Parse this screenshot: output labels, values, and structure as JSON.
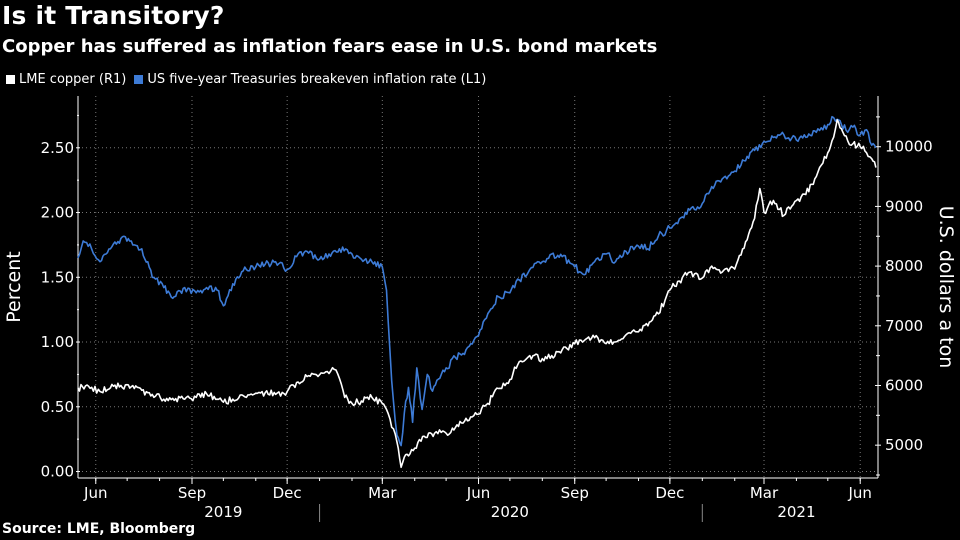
{
  "title": "Is it Transitory?",
  "subtitle": "Copper has suffered as inflation fears ease in U.S. bond markets",
  "source": "Source: LME, Bloomberg",
  "legend": [
    {
      "label": "LME copper (R1)",
      "color": "#ffffff"
    },
    {
      "label": "US five-year Treasuries breakeven inflation rate (L1)",
      "color": "#3d7bd6"
    }
  ],
  "chart_data": {
    "type": "line",
    "x_range": [
      "2019-05-15",
      "2021-06-18"
    ],
    "left_axis": {
      "title": "Percent",
      "ylim": [
        -0.05,
        2.9
      ],
      "ticks": [
        0.0,
        0.5,
        1.0,
        1.5,
        2.0,
        2.5
      ],
      "tick_labels": [
        "0.00",
        "0.50",
        "1.00",
        "1.50",
        "2.00",
        "2.50"
      ]
    },
    "right_axis": {
      "title": "U.S. dollars a ton",
      "ylim": [
        4450,
        10850
      ],
      "ticks": [
        5000,
        6000,
        7000,
        8000,
        9000,
        10000
      ],
      "tick_labels": [
        "5000",
        "6000",
        "7000",
        "8000",
        "9000",
        "10000"
      ]
    },
    "x_tick_labels": [
      {
        "label": "Jun",
        "date": "2019-06-01"
      },
      {
        "label": "Sep",
        "date": "2019-09-01"
      },
      {
        "label": "Dec",
        "date": "2019-12-01"
      },
      {
        "label": "Mar",
        "date": "2020-03-01"
      },
      {
        "label": "Jun",
        "date": "2020-06-01"
      },
      {
        "label": "Sep",
        "date": "2020-09-01"
      },
      {
        "label": "Dec",
        "date": "2020-12-01"
      },
      {
        "label": "Mar",
        "date": "2021-03-01"
      },
      {
        "label": "Jun",
        "date": "2021-06-01"
      }
    ],
    "year_labels": [
      {
        "label": "2019",
        "date": "2019-10-01"
      },
      {
        "label": "2020",
        "date": "2020-07-01"
      },
      {
        "label": "2021",
        "date": "2021-04-01"
      }
    ],
    "year_separators": [
      "2020-01-01",
      "2021-01-01"
    ],
    "series": [
      {
        "name": "US five-year Treasuries breakeven inflation rate (L1)",
        "axis": "left",
        "color": "#3d7bd6",
        "x": [
          "2019-05-15",
          "2019-05-20",
          "2019-05-28",
          "2019-06-05",
          "2019-06-15",
          "2019-06-25",
          "2019-07-05",
          "2019-07-15",
          "2019-07-25",
          "2019-08-05",
          "2019-08-15",
          "2019-08-25",
          "2019-09-05",
          "2019-09-15",
          "2019-09-25",
          "2019-10-01",
          "2019-10-10",
          "2019-10-20",
          "2019-11-01",
          "2019-11-10",
          "2019-11-20",
          "2019-12-01",
          "2019-12-10",
          "2019-12-20",
          "2020-01-01",
          "2020-01-10",
          "2020-01-20",
          "2020-02-01",
          "2020-02-10",
          "2020-02-20",
          "2020-03-01",
          "2020-03-05",
          "2020-03-10",
          "2020-03-15",
          "2020-03-19",
          "2020-03-22",
          "2020-03-26",
          "2020-03-30",
          "2020-04-03",
          "2020-04-08",
          "2020-04-13",
          "2020-04-18",
          "2020-04-25",
          "2020-05-01",
          "2020-05-10",
          "2020-05-20",
          "2020-06-01",
          "2020-06-10",
          "2020-06-20",
          "2020-07-01",
          "2020-07-10",
          "2020-07-20",
          "2020-08-01",
          "2020-08-10",
          "2020-08-20",
          "2020-09-01",
          "2020-09-10",
          "2020-09-20",
          "2020-10-01",
          "2020-10-10",
          "2020-10-20",
          "2020-11-01",
          "2020-11-10",
          "2020-11-20",
          "2020-12-01",
          "2020-12-10",
          "2020-12-20",
          "2021-01-01",
          "2021-01-10",
          "2021-01-20",
          "2021-02-01",
          "2021-02-10",
          "2021-02-20",
          "2021-03-01",
          "2021-03-10",
          "2021-03-20",
          "2021-04-01",
          "2021-04-10",
          "2021-04-20",
          "2021-05-01",
          "2021-05-05",
          "2021-05-10",
          "2021-05-14",
          "2021-05-20",
          "2021-05-25",
          "2021-06-01",
          "2021-06-07",
          "2021-06-12",
          "2021-06-16"
        ],
        "y": [
          1.65,
          1.78,
          1.72,
          1.62,
          1.72,
          1.8,
          1.78,
          1.72,
          1.5,
          1.42,
          1.35,
          1.42,
          1.38,
          1.42,
          1.4,
          1.28,
          1.45,
          1.55,
          1.58,
          1.6,
          1.62,
          1.56,
          1.66,
          1.7,
          1.64,
          1.68,
          1.72,
          1.68,
          1.64,
          1.62,
          1.58,
          1.4,
          0.7,
          0.28,
          0.2,
          0.45,
          0.65,
          0.38,
          0.8,
          0.48,
          0.75,
          0.62,
          0.72,
          0.8,
          0.88,
          0.94,
          1.05,
          1.22,
          1.35,
          1.38,
          1.48,
          1.56,
          1.62,
          1.68,
          1.66,
          1.58,
          1.52,
          1.62,
          1.68,
          1.62,
          1.7,
          1.74,
          1.72,
          1.82,
          1.88,
          1.95,
          2.02,
          2.07,
          2.2,
          2.26,
          2.32,
          2.4,
          2.48,
          2.55,
          2.58,
          2.6,
          2.56,
          2.58,
          2.62,
          2.68,
          2.74,
          2.72,
          2.68,
          2.62,
          2.66,
          2.6,
          2.64,
          2.52,
          2.5
        ]
      },
      {
        "name": "LME copper (R1)",
        "axis": "right",
        "color": "#ffffff",
        "x": [
          "2019-05-15",
          "2019-05-25",
          "2019-06-05",
          "2019-06-15",
          "2019-06-25",
          "2019-07-05",
          "2019-07-15",
          "2019-07-25",
          "2019-08-05",
          "2019-08-15",
          "2019-08-25",
          "2019-09-05",
          "2019-09-15",
          "2019-09-25",
          "2019-10-01",
          "2019-10-10",
          "2019-10-20",
          "2019-11-01",
          "2019-11-10",
          "2019-11-20",
          "2019-12-01",
          "2019-12-10",
          "2019-12-20",
          "2020-01-01",
          "2020-01-10",
          "2020-01-15",
          "2020-01-20",
          "2020-01-25",
          "2020-02-01",
          "2020-02-10",
          "2020-02-20",
          "2020-03-01",
          "2020-03-05",
          "2020-03-10",
          "2020-03-15",
          "2020-03-19",
          "2020-03-22",
          "2020-03-26",
          "2020-04-01",
          "2020-04-10",
          "2020-04-20",
          "2020-05-01",
          "2020-05-10",
          "2020-05-20",
          "2020-06-01",
          "2020-06-10",
          "2020-06-20",
          "2020-07-01",
          "2020-07-10",
          "2020-07-20",
          "2020-08-01",
          "2020-08-10",
          "2020-08-20",
          "2020-09-01",
          "2020-09-10",
          "2020-09-20",
          "2020-10-01",
          "2020-10-10",
          "2020-10-20",
          "2020-11-01",
          "2020-11-10",
          "2020-11-20",
          "2020-12-01",
          "2020-12-10",
          "2020-12-20",
          "2021-01-01",
          "2021-01-10",
          "2021-01-20",
          "2021-02-01",
          "2021-02-10",
          "2021-02-20",
          "2021-02-25",
          "2021-03-01",
          "2021-03-10",
          "2021-03-20",
          "2021-04-01",
          "2021-04-10",
          "2021-04-20",
          "2021-05-01",
          "2021-05-05",
          "2021-05-10",
          "2021-05-14",
          "2021-05-20",
          "2021-05-25",
          "2021-06-01",
          "2021-06-07",
          "2021-06-12",
          "2021-06-16"
        ],
        "y": [
          5960,
          5990,
          5900,
          5960,
          6000,
          5980,
          5920,
          5850,
          5770,
          5750,
          5770,
          5800,
          5860,
          5770,
          5720,
          5770,
          5830,
          5870,
          5880,
          5850,
          5900,
          6050,
          6150,
          6180,
          6200,
          6270,
          6120,
          5800,
          5700,
          5740,
          5800,
          5700,
          5600,
          5300,
          5050,
          4630,
          4800,
          4820,
          4950,
          5150,
          5200,
          5200,
          5300,
          5450,
          5520,
          5700,
          5950,
          6100,
          6400,
          6500,
          6450,
          6500,
          6600,
          6700,
          6750,
          6800,
          6700,
          6730,
          6850,
          6900,
          7000,
          7200,
          7600,
          7750,
          7900,
          7800,
          8000,
          7900,
          7950,
          8300,
          8800,
          9300,
          8900,
          9100,
          8850,
          9100,
          9200,
          9500,
          9900,
          10100,
          10450,
          10300,
          10100,
          10050,
          10000,
          9900,
          9800,
          9650
        ]
      }
    ]
  }
}
